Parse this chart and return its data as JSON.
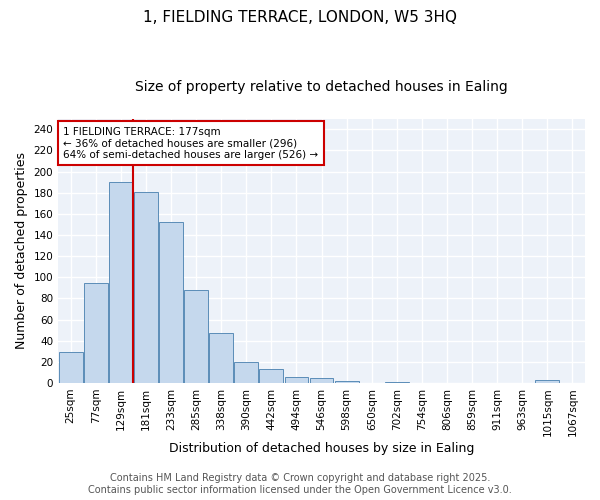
{
  "title": "1, FIELDING TERRACE, LONDON, W5 3HQ",
  "subtitle": "Size of property relative to detached houses in Ealing",
  "xlabel": "Distribution of detached houses by size in Ealing",
  "ylabel": "Number of detached properties",
  "categories": [
    "25sqm",
    "77sqm",
    "129sqm",
    "181sqm",
    "233sqm",
    "285sqm",
    "338sqm",
    "390sqm",
    "442sqm",
    "494sqm",
    "546sqm",
    "598sqm",
    "650sqm",
    "702sqm",
    "754sqm",
    "806sqm",
    "859sqm",
    "911sqm",
    "963sqm",
    "1015sqm",
    "1067sqm"
  ],
  "values": [
    29,
    95,
    190,
    181,
    152,
    88,
    47,
    20,
    13,
    6,
    5,
    2,
    0,
    1,
    0,
    0,
    0,
    0,
    0,
    3,
    0
  ],
  "bar_color": "#c5d8ed",
  "bar_edge_color": "#5b8db8",
  "vline_color": "#cc0000",
  "vline_x_index": 3,
  "annotation_text": "1 FIELDING TERRACE: 177sqm\n← 36% of detached houses are smaller (296)\n64% of semi-detached houses are larger (526) →",
  "annotation_box_color": "#ffffff",
  "annotation_box_edge": "#cc0000",
  "annotation_fontsize": 7.5,
  "ylim": [
    0,
    250
  ],
  "yticks": [
    0,
    20,
    40,
    60,
    80,
    100,
    120,
    140,
    160,
    180,
    200,
    220,
    240
  ],
  "background_color": "#edf2f9",
  "grid_color": "#ffffff",
  "title_fontsize": 11,
  "subtitle_fontsize": 10,
  "xlabel_fontsize": 9,
  "ylabel_fontsize": 9,
  "tick_fontsize": 7.5,
  "footer_text": "Contains HM Land Registry data © Crown copyright and database right 2025.\nContains public sector information licensed under the Open Government Licence v3.0.",
  "footer_fontsize": 7
}
